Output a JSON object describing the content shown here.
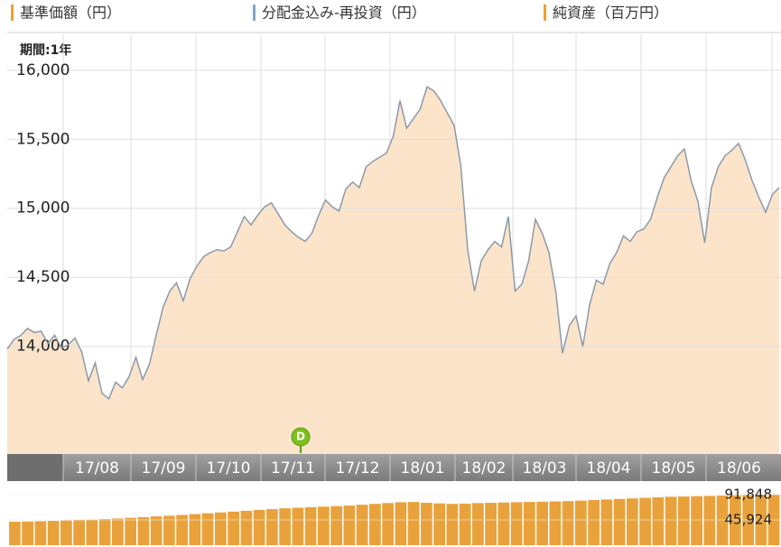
{
  "chart_data": [
    {
      "type": "area",
      "legend": [
        {
          "name": "基準価額（円）",
          "color": "#f0a030"
        },
        {
          "name": "分配金込み-再投資（円）",
          "color": "#7fa6c8"
        },
        {
          "name": "純資産（百万円）",
          "color": "#f0a030"
        }
      ],
      "period_label": "期間:1年",
      "marker_label": "D",
      "months": [
        "17/08",
        "17/09",
        "17/10",
        "17/11",
        "17/12",
        "18/01",
        "18/02",
        "18/03",
        "18/04",
        "18/05",
        "18/06"
      ],
      "ylim": [
        13220,
        16260
      ],
      "yticks": [
        {
          "value": 14000,
          "label": "14,000"
        },
        {
          "value": 14500,
          "label": "14,500"
        },
        {
          "value": 15000,
          "label": "15,000"
        },
        {
          "value": 15500,
          "label": "15,500"
        },
        {
          "value": 16000,
          "label": "16,000"
        }
      ],
      "grid": true,
      "color": "#fbe4ca",
      "line_color": "#8c9aac",
      "values": [
        13980,
        14050,
        14080,
        14130,
        14100,
        14110,
        14020,
        14080,
        13990,
        14010,
        14060,
        13960,
        13750,
        13880,
        13660,
        13620,
        13740,
        13700,
        13780,
        13920,
        13760,
        13870,
        14080,
        14280,
        14400,
        14460,
        14330,
        14490,
        14580,
        14650,
        14680,
        14700,
        14690,
        14720,
        14830,
        14940,
        14880,
        14950,
        15010,
        15040,
        14960,
        14880,
        14830,
        14790,
        14760,
        14820,
        14950,
        15060,
        15010,
        14980,
        15140,
        15190,
        15150,
        15300,
        15340,
        15370,
        15400,
        15520,
        15780,
        15580,
        15650,
        15720,
        15880,
        15850,
        15780,
        15690,
        15600,
        15300,
        14700,
        14400,
        14620,
        14700,
        14760,
        14720,
        14940,
        14400,
        14450,
        14620,
        14920,
        14820,
        14680,
        14400,
        13950,
        14150,
        14220,
        14000,
        14300,
        14480,
        14450,
        14600,
        14680,
        14800,
        14760,
        14830,
        14850,
        14920,
        15080,
        15220,
        15300,
        15380,
        15430,
        15200,
        15050,
        14750,
        15150,
        15300,
        15380,
        15420,
        15470,
        15350,
        15200,
        15080,
        14970,
        15100,
        15150
      ]
    },
    {
      "type": "bar",
      "color": "#e9a23b",
      "ylim": [
        0,
        100000
      ],
      "yticks": [
        {
          "value": 91848,
          "label": "91,848"
        },
        {
          "value": 45924,
          "label": "45,924"
        }
      ],
      "values": [
        42600,
        43100,
        43600,
        44100,
        44800,
        45500,
        46500,
        47500,
        48500,
        49800,
        51000,
        52300,
        53500,
        55000,
        56500,
        58000,
        59500,
        61000,
        62500,
        64000,
        65500,
        67000,
        68000,
        69000,
        70000,
        71000,
        72000,
        73500,
        75000,
        76500,
        78000,
        78500,
        77000,
        76000,
        75000,
        75500,
        76500,
        77000,
        77500,
        78000,
        78500,
        79000,
        79500,
        80000,
        81000,
        82000,
        83000,
        84000,
        85000,
        86000,
        87000,
        88000,
        88500,
        89000,
        89500,
        90000,
        90500,
        91000,
        91500,
        91848
      ]
    }
  ]
}
